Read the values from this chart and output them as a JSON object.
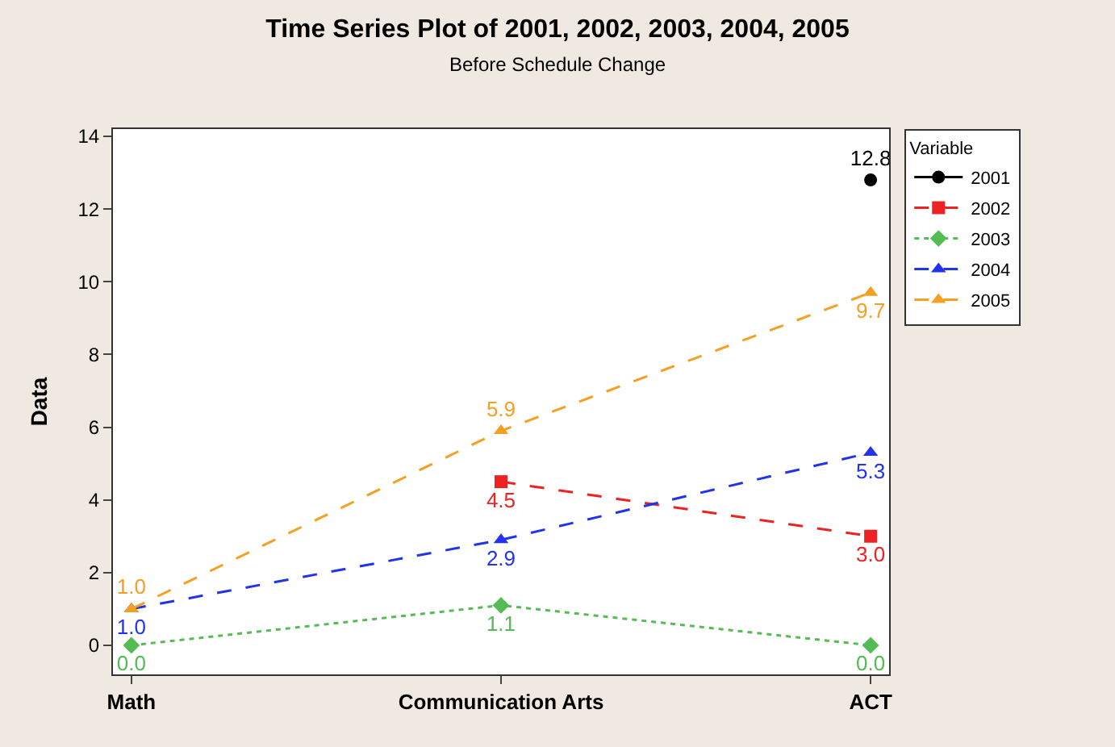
{
  "chart_data": {
    "type": "line",
    "title": "Time Series Plot of 2001, 2002, 2003, 2004, 2005",
    "subtitle": "Before Schedule Change",
    "ylabel": "Data",
    "legend_title": "Variable",
    "categories": [
      "Math",
      "Communication Arts",
      "ACT"
    ],
    "series": [
      {
        "name": "2001",
        "color": "#000000",
        "values": [
          null,
          null,
          12.8
        ],
        "value_labels": [
          null,
          null,
          "12.8"
        ],
        "marker": "circle",
        "line_style": "solid"
      },
      {
        "name": "2002",
        "color": "#ee2222",
        "values": [
          null,
          4.5,
          3.0
        ],
        "value_labels": [
          null,
          "4.5",
          "3.0"
        ],
        "marker": "square",
        "line_style": "dashed"
      },
      {
        "name": "2003",
        "color": "#55bb55",
        "values": [
          0.0,
          1.1,
          0.0
        ],
        "value_labels": [
          "0.0",
          "1.1",
          "0.0"
        ],
        "marker": "diamond",
        "line_style": "dotted"
      },
      {
        "name": "2004",
        "color": "#2233ee",
        "values": [
          1.0,
          2.9,
          5.3
        ],
        "value_labels": [
          "1.0",
          "2.9",
          "5.3"
        ],
        "marker": "triangle",
        "line_style": "dashed"
      },
      {
        "name": "2005",
        "color": "#f5a020",
        "values": [
          1.0,
          5.9,
          9.7
        ],
        "value_labels": [
          "1.0",
          "5.9",
          "9.7"
        ],
        "marker": "triangle",
        "line_style": "dashed"
      }
    ],
    "ylim": [
      -0.8,
      14.2
    ],
    "yticks": [
      0,
      2,
      4,
      6,
      8,
      10,
      12,
      14
    ],
    "legend": "right"
  }
}
